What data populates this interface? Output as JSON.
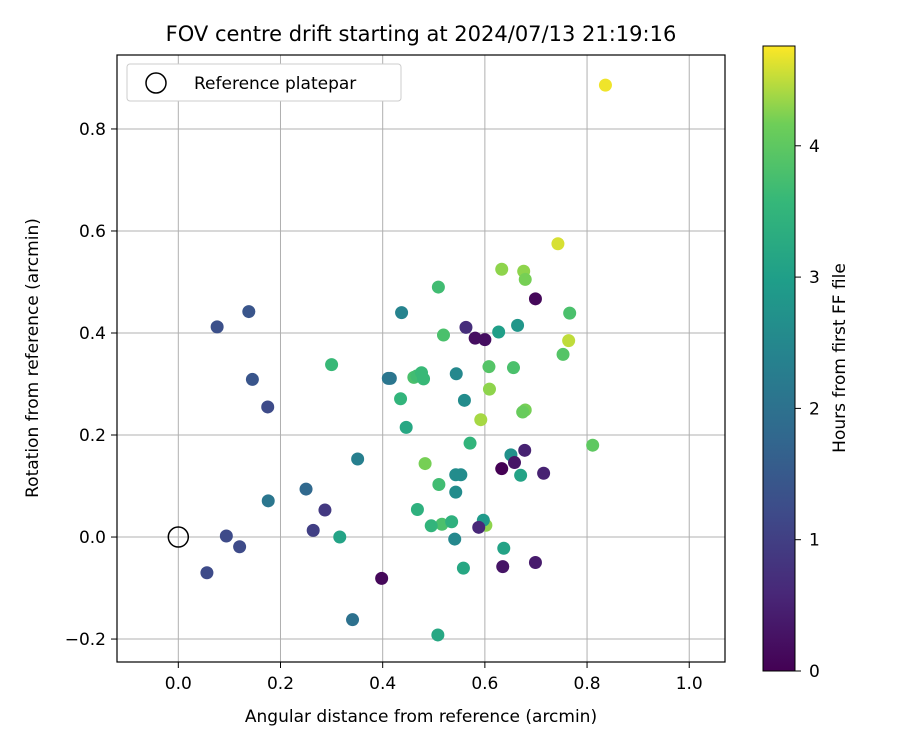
{
  "chart_data": {
    "type": "scatter",
    "title": "FOV centre drift starting at 2024/07/13 21:19:16",
    "xlabel": "Angular distance from reference (arcmin)",
    "ylabel": "Rotation from reference (arcmin)",
    "colorbar_label": "Hours from first FF file",
    "xlim": [
      -0.12,
      1.07
    ],
    "ylim": [
      -0.245,
      0.945
    ],
    "xticks": [
      0.0,
      0.2,
      0.4,
      0.6,
      0.8,
      1.0
    ],
    "xtick_labels": [
      "0.0",
      "0.2",
      "0.4",
      "0.6",
      "0.8",
      "1.0"
    ],
    "yticks": [
      -0.2,
      0.0,
      0.2,
      0.4,
      0.6,
      0.8
    ],
    "ytick_labels": [
      "−0.2",
      "0.0",
      "0.2",
      "0.4",
      "0.6",
      "0.8"
    ],
    "colorbar_range": [
      0,
      4.76
    ],
    "colorbar_ticks": [
      0,
      1,
      2,
      3,
      4
    ],
    "colorbar_tick_labels": [
      "0",
      "1",
      "2",
      "3",
      "4"
    ],
    "colormap": "viridis",
    "grid": true,
    "legend": {
      "placement": "upper-left",
      "label": "Reference platepar"
    },
    "reference_point": {
      "x": 0.0,
      "y": 0.0
    },
    "points": [
      {
        "x": 0.836,
        "y": 0.886,
        "h": 4.7
      },
      {
        "x": 0.743,
        "y": 0.575,
        "h": 4.6
      },
      {
        "x": 0.764,
        "y": 0.385,
        "h": 4.5
      },
      {
        "x": 0.633,
        "y": 0.525,
        "h": 4.3
      },
      {
        "x": 0.676,
        "y": 0.521,
        "h": 4.3
      },
      {
        "x": 0.679,
        "y": 0.505,
        "h": 4.2
      },
      {
        "x": 0.609,
        "y": 0.29,
        "h": 4.3
      },
      {
        "x": 0.592,
        "y": 0.23,
        "h": 4.4
      },
      {
        "x": 0.679,
        "y": 0.249,
        "h": 4.2
      },
      {
        "x": 0.674,
        "y": 0.245,
        "h": 4.1
      },
      {
        "x": 0.483,
        "y": 0.144,
        "h": 4.2
      },
      {
        "x": 0.602,
        "y": 0.023,
        "h": 4.3
      },
      {
        "x": 0.811,
        "y": 0.18,
        "h": 4.0
      },
      {
        "x": 0.766,
        "y": 0.439,
        "h": 3.8
      },
      {
        "x": 0.753,
        "y": 0.358,
        "h": 3.9
      },
      {
        "x": 0.608,
        "y": 0.334,
        "h": 3.9
      },
      {
        "x": 0.656,
        "y": 0.332,
        "h": 3.8
      },
      {
        "x": 0.519,
        "y": 0.396,
        "h": 3.8
      },
      {
        "x": 0.509,
        "y": 0.49,
        "h": 3.7
      },
      {
        "x": 0.3,
        "y": 0.338,
        "h": 3.6
      },
      {
        "x": 0.461,
        "y": 0.313,
        "h": 3.8
      },
      {
        "x": 0.467,
        "y": 0.316,
        "h": 3.7
      },
      {
        "x": 0.476,
        "y": 0.322,
        "h": 3.6
      },
      {
        "x": 0.48,
        "y": 0.31,
        "h": 3.6
      },
      {
        "x": 0.435,
        "y": 0.271,
        "h": 3.5
      },
      {
        "x": 0.51,
        "y": 0.103,
        "h": 3.7
      },
      {
        "x": 0.516,
        "y": 0.025,
        "h": 3.8
      },
      {
        "x": 0.571,
        "y": 0.184,
        "h": 3.5
      },
      {
        "x": 0.468,
        "y": 0.054,
        "h": 3.4
      },
      {
        "x": 0.495,
        "y": 0.022,
        "h": 3.5
      },
      {
        "x": 0.535,
        "y": 0.03,
        "h": 3.4
      },
      {
        "x": 0.446,
        "y": 0.215,
        "h": 3.2
      },
      {
        "x": 0.316,
        "y": 0.0,
        "h": 3.1
      },
      {
        "x": 0.558,
        "y": -0.061,
        "h": 3.2
      },
      {
        "x": 0.508,
        "y": -0.192,
        "h": 3.2
      },
      {
        "x": 0.637,
        "y": -0.022,
        "h": 3.1
      },
      {
        "x": 0.67,
        "y": 0.121,
        "h": 3.1
      },
      {
        "x": 0.627,
        "y": 0.402,
        "h": 3.0
      },
      {
        "x": 0.664,
        "y": 0.415,
        "h": 2.8
      },
      {
        "x": 0.651,
        "y": 0.161,
        "h": 2.7
      },
      {
        "x": 0.597,
        "y": 0.033,
        "h": 2.9
      },
      {
        "x": 0.56,
        "y": 0.268,
        "h": 2.6
      },
      {
        "x": 0.544,
        "y": 0.32,
        "h": 2.5
      },
      {
        "x": 0.543,
        "y": 0.122,
        "h": 2.6
      },
      {
        "x": 0.553,
        "y": 0.122,
        "h": 2.6
      },
      {
        "x": 0.543,
        "y": 0.088,
        "h": 2.6
      },
      {
        "x": 0.541,
        "y": -0.004,
        "h": 2.5
      },
      {
        "x": 0.437,
        "y": 0.44,
        "h": 2.4
      },
      {
        "x": 0.351,
        "y": 0.153,
        "h": 2.3
      },
      {
        "x": 0.411,
        "y": 0.311,
        "h": 2.1
      },
      {
        "x": 0.415,
        "y": 0.311,
        "h": 2.1
      },
      {
        "x": 0.176,
        "y": 0.071,
        "h": 2.1
      },
      {
        "x": 0.341,
        "y": -0.162,
        "h": 2.0
      },
      {
        "x": 0.25,
        "y": 0.094,
        "h": 1.8
      },
      {
        "x": 0.138,
        "y": 0.442,
        "h": 1.4
      },
      {
        "x": 0.145,
        "y": 0.309,
        "h": 1.4
      },
      {
        "x": 0.076,
        "y": 0.412,
        "h": 1.3
      },
      {
        "x": 0.175,
        "y": 0.255,
        "h": 1.2
      },
      {
        "x": 0.094,
        "y": 0.002,
        "h": 1.2
      },
      {
        "x": 0.12,
        "y": -0.019,
        "h": 1.2
      },
      {
        "x": 0.056,
        "y": -0.07,
        "h": 1.2
      },
      {
        "x": 0.264,
        "y": 0.013,
        "h": 1.0
      },
      {
        "x": 0.287,
        "y": 0.053,
        "h": 0.9
      },
      {
        "x": 0.563,
        "y": 0.411,
        "h": 0.7
      },
      {
        "x": 0.588,
        "y": 0.019,
        "h": 0.6
      },
      {
        "x": 0.715,
        "y": 0.125,
        "h": 0.5
      },
      {
        "x": 0.678,
        "y": 0.17,
        "h": 0.5
      },
      {
        "x": 0.699,
        "y": -0.05,
        "h": 0.4
      },
      {
        "x": 0.635,
        "y": -0.058,
        "h": 0.3
      },
      {
        "x": 0.658,
        "y": 0.146,
        "h": 0.3
      },
      {
        "x": 0.581,
        "y": 0.39,
        "h": 0.2
      },
      {
        "x": 0.6,
        "y": 0.387,
        "h": 0.2
      },
      {
        "x": 0.699,
        "y": 0.467,
        "h": 0.1
      },
      {
        "x": 0.398,
        "y": -0.081,
        "h": 0.1
      },
      {
        "x": 0.633,
        "y": 0.134,
        "h": 0.0
      }
    ]
  }
}
